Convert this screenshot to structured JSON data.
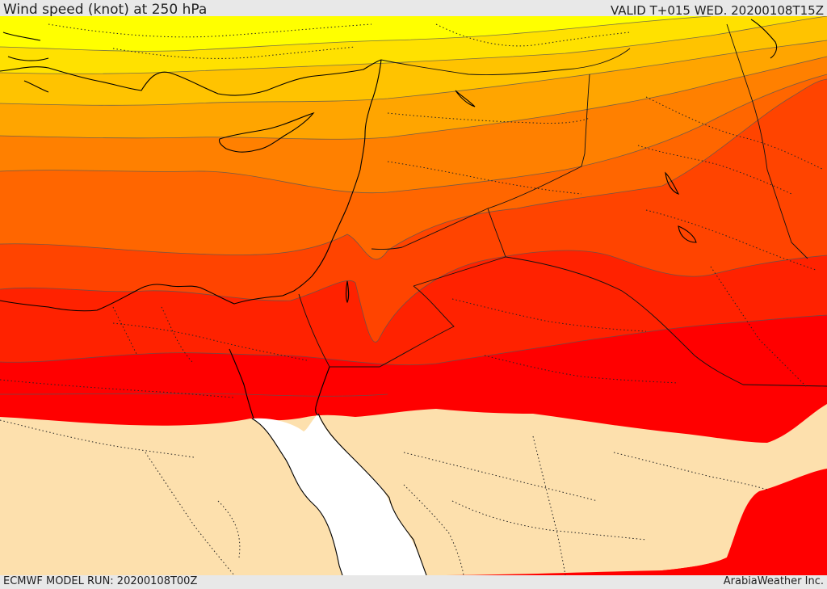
{
  "header": {
    "title": "Wind speed (knot) at 250 hPa",
    "valid": "VALID T+015 WED. 20200108T15Z"
  },
  "footer": {
    "model_run": "ECMWF MODEL RUN: 20200108T00Z",
    "credit": "ArabiaWeather Inc."
  },
  "colors": {
    "band_1": "#ffff00",
    "band_2": "#ffe100",
    "band_3": "#ffc300",
    "band_4": "#ffa500",
    "band_5": "#ff8000",
    "band_6": "#ff6600",
    "band_7": "#ff4400",
    "band_8": "#ff2200",
    "band_9": "#ff0000",
    "land_below_threshold": "#fde0ad",
    "sea": "#ffffff"
  }
}
